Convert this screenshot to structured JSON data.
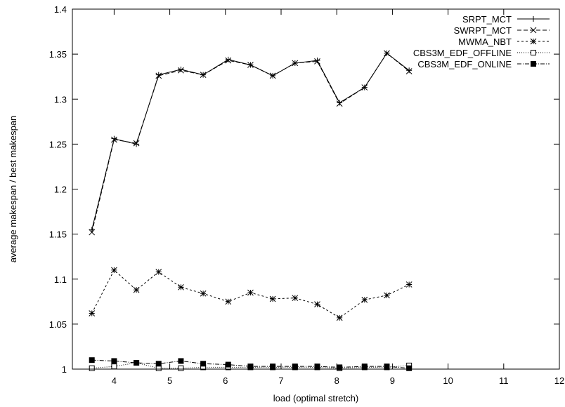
{
  "chart_data": {
    "type": "line",
    "xlabel": "load (optimal stretch)",
    "ylabel": "average makespan / best makespan",
    "xlim": [
      3.25,
      12
    ],
    "ylim": [
      1,
      1.4
    ],
    "xticks": [
      4,
      5,
      6,
      7,
      8,
      9,
      10,
      11,
      12
    ],
    "yticks": [
      1,
      1.05,
      1.1,
      1.15,
      1.2,
      1.25,
      1.3,
      1.35,
      1.4
    ],
    "ytick_labels": [
      "1",
      "1.05",
      "1.1",
      "1.15",
      "1.2",
      "1.25",
      "1.3",
      "1.35",
      "1.4"
    ],
    "grid": false,
    "legend_position": "top-right",
    "x": [
      3.6,
      4.0,
      4.4,
      4.8,
      5.2,
      5.6,
      6.05,
      6.45,
      6.85,
      7.25,
      7.65,
      8.05,
      8.5,
      8.9,
      9.3
    ],
    "series": [
      {
        "name": "SRPT_MCT",
        "style": "solid",
        "marker": "plus",
        "values": [
          1.155,
          1.256,
          1.25,
          1.327,
          1.333,
          1.327,
          1.344,
          1.338,
          1.326,
          1.34,
          1.343,
          1.296,
          1.313,
          1.351,
          1.332
        ]
      },
      {
        "name": "SWRPT_MCT",
        "style": "dashed",
        "marker": "x",
        "values": [
          1.152,
          1.255,
          1.251,
          1.326,
          1.332,
          1.327,
          1.343,
          1.338,
          1.326,
          1.34,
          1.342,
          1.295,
          1.313,
          1.351,
          1.331
        ]
      },
      {
        "name": "MWMA_NBT",
        "style": "short-dash",
        "marker": "star",
        "values": [
          1.062,
          1.11,
          1.088,
          1.108,
          1.091,
          1.084,
          1.075,
          1.085,
          1.078,
          1.079,
          1.072,
          1.057,
          1.077,
          1.082,
          1.094
        ]
      },
      {
        "name": "CBS3M_EDF_OFFLINE",
        "style": "dotted",
        "marker": "open-square",
        "values": [
          1.001,
          1.003,
          1.007,
          1.001,
          1.001,
          1.002,
          1.002,
          1.002,
          1.002,
          1.002,
          1.002,
          1.001,
          1.002,
          1.002,
          1.004
        ]
      },
      {
        "name": "CBS3M_EDF_ONLINE",
        "style": "dash-dot",
        "marker": "filled-square",
        "values": [
          1.01,
          1.009,
          1.007,
          1.006,
          1.009,
          1.006,
          1.005,
          1.003,
          1.003,
          1.003,
          1.003,
          1.002,
          1.003,
          1.003,
          1.001
        ]
      }
    ]
  }
}
